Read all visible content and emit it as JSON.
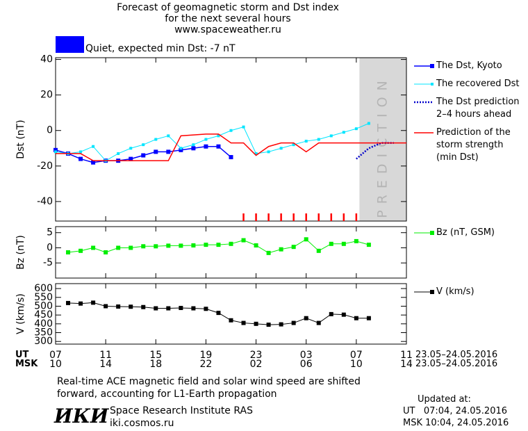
{
  "header": {
    "title": "Forecast of geomagnetic storm and Dst index\nfor the next several hours\nwww.spaceweather.ru",
    "status": "Quiet, expected min Dst: -7 nT",
    "status_color": "#0000ff"
  },
  "time_axis": {
    "ut_label": "UT",
    "msk_label": "MSK",
    "date_range": "23.05–24.05.2016",
    "ut_ticks": [
      {
        "value": 0,
        "label": "07"
      },
      {
        "value": 4,
        "label": "11"
      },
      {
        "value": 8,
        "label": "15"
      },
      {
        "value": 12,
        "label": "19"
      },
      {
        "value": 16,
        "label": "23"
      },
      {
        "value": 20,
        "label": "03"
      },
      {
        "value": 24,
        "label": "07"
      },
      {
        "value": 28,
        "label": "11"
      }
    ],
    "msk_ticks": [
      {
        "value": 0,
        "label": "10"
      },
      {
        "value": 4,
        "label": "14"
      },
      {
        "value": 8,
        "label": "18"
      },
      {
        "value": 12,
        "label": "22"
      },
      {
        "value": 16,
        "label": "02"
      },
      {
        "value": 20,
        "label": "06"
      },
      {
        "value": 24,
        "label": "10"
      },
      {
        "value": 28,
        "label": "14"
      }
    ]
  },
  "chart_data": [
    {
      "type": "line",
      "ylabel": "Dst (nT)",
      "xlim": [
        0,
        28
      ],
      "ylim": [
        -51,
        41
      ],
      "yticks": [
        -40,
        -20,
        0,
        20,
        40
      ],
      "prediction_label": "PREDICTION",
      "prediction_span": [
        24.25,
        28
      ],
      "storm_markers_x": [
        15,
        16,
        17,
        18,
        19,
        20,
        21,
        22,
        23,
        24
      ],
      "storm_marker_color": "#ff0000",
      "series": [
        {
          "name": "The Dst, Kyoto",
          "color": "#0000ff",
          "marker": "square",
          "width": 1.5,
          "x": [
            0,
            1,
            2,
            3,
            4,
            5,
            6,
            7,
            8,
            9,
            10,
            11,
            12,
            13,
            14
          ],
          "values": [
            -11,
            -13,
            -16,
            -18,
            -17,
            -17,
            -16,
            -14,
            -12,
            -12,
            -11,
            -10,
            -9,
            -9,
            -15
          ]
        },
        {
          "name": "The recovered Dst",
          "color": "#00e5ff",
          "marker": "small",
          "width": 1,
          "x": [
            0,
            1,
            2,
            3,
            4,
            5,
            6,
            7,
            8,
            9,
            10,
            11,
            12,
            13,
            14,
            15,
            16,
            17,
            18,
            19,
            20,
            21,
            22,
            23,
            24,
            25
          ],
          "values": [
            -12,
            -13,
            -12,
            -9,
            -17,
            -13,
            -10,
            -8,
            -5,
            -3,
            -10,
            -8,
            -5,
            -3,
            0,
            2,
            -13,
            -12,
            -10,
            -8,
            -6,
            -5,
            -3,
            -1,
            1,
            4
          ]
        },
        {
          "name": "The Dst prediction\n2–4 hours ahead",
          "color": "#0000cc",
          "marker": "none",
          "dashed": true,
          "width": 2.5,
          "x": [
            24,
            25,
            26,
            27
          ],
          "values": [
            -16,
            -10,
            -7,
            -7
          ]
        },
        {
          "name": "Prediction of the\nstorm strength\n(min Dst)",
          "color": "#ff0000",
          "marker": "none",
          "width": 1.5,
          "x": [
            0,
            2,
            3,
            9,
            10,
            12,
            13,
            14,
            15,
            16,
            17,
            18,
            19,
            20,
            21,
            28
          ],
          "values": [
            -13,
            -13,
            -17,
            -17,
            -3,
            -2,
            -2,
            -7,
            -7,
            -14,
            -9,
            -7,
            -7,
            -12,
            -7,
            -7
          ]
        }
      ]
    },
    {
      "type": "line",
      "ylabel": "Bz (nT)",
      "xlim": [
        0,
        28
      ],
      "ylim": [
        -10,
        7
      ],
      "yticks": [
        -5,
        0,
        5
      ],
      "series": [
        {
          "name": "Bz (nT, GSM)",
          "color": "#00ee00",
          "marker": "square",
          "width": 1,
          "x": [
            1,
            2,
            3,
            4,
            5,
            6,
            7,
            8,
            9,
            10,
            11,
            12,
            13,
            14,
            15,
            16,
            17,
            18,
            19,
            20,
            21,
            22,
            23,
            24,
            25
          ],
          "values": [
            -1.5,
            -1,
            0,
            -1.5,
            0,
            0,
            0.5,
            0.5,
            0.7,
            0.7,
            0.8,
            1,
            1,
            1.3,
            2.5,
            0.8,
            -1.7,
            -0.5,
            0.3,
            2.8,
            -1,
            1.3,
            1.3,
            2.2,
            1
          ]
        }
      ]
    },
    {
      "type": "line",
      "ylabel": "V (km/s)",
      "xlim": [
        0,
        28
      ],
      "ylim": [
        285,
        628
      ],
      "yticks": [
        300,
        350,
        400,
        450,
        500,
        550,
        600
      ],
      "series": [
        {
          "name": "V (km/s)",
          "color": "#000000",
          "marker": "square",
          "width": 1,
          "x": [
            1,
            2,
            3,
            4,
            5,
            6,
            7,
            8,
            9,
            10,
            11,
            12,
            13,
            14,
            15,
            16,
            17,
            18,
            19,
            20,
            21,
            22,
            23,
            24,
            25
          ],
          "values": [
            518,
            515,
            520,
            500,
            498,
            497,
            495,
            488,
            488,
            490,
            488,
            485,
            462,
            420,
            405,
            400,
            395,
            397,
            405,
            432,
            405,
            455,
            452,
            432,
            432
          ]
        }
      ]
    }
  ],
  "footer": {
    "note": "Real-time ACE magnetic field and solar wind speed are shifted\nforward, accounting for L1-Earth propagation",
    "logo": "ИКИ",
    "institute": "Space Research Institute RAS",
    "site": "iki.cosmos.ru",
    "updated": "Updated at:",
    "updated_ut": "UT   07:04, 24.05.2016",
    "updated_msk": "MSK 10:04, 24.05.2016"
  }
}
